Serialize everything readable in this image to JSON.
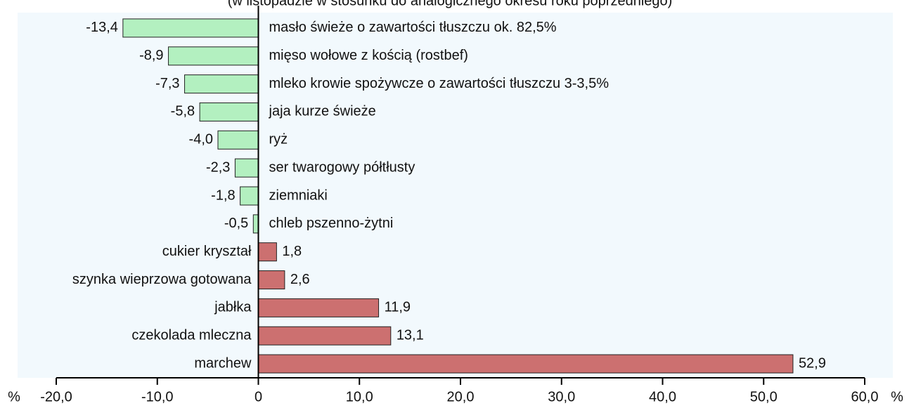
{
  "chart_data": {
    "type": "bar",
    "orientation": "horizontal",
    "subtitle": "(w listopadzie w stosunku do analogicznego okresu roku poprzedniego)",
    "categories": [
      "masło świeże o zawartości tłuszczu ok. 82,5%",
      "mięso wołowe z kością (rostbef)",
      "mleko krowie spożywcze o zawartości tłuszczu 3-3,5%",
      "jaja kurze świeże",
      "ryż",
      "ser twarogowy półtłusty",
      "ziemniaki",
      "chleb pszenno-żytni",
      "cukier kryształ",
      "szynka wieprzowa gotowana",
      "jabłka",
      "czekolada mleczna",
      "marchew"
    ],
    "values": [
      -13.4,
      -8.9,
      -7.3,
      -5.8,
      -4.0,
      -2.3,
      -1.8,
      -0.5,
      1.8,
      2.6,
      11.9,
      13.1,
      52.9
    ],
    "value_labels": [
      "-13,4",
      "-8,9",
      "-7,3",
      "-5,8",
      "-4,0",
      "-2,3",
      "-1,8",
      "-0,5",
      "1,8",
      "2,6",
      "11,9",
      "13,1",
      "52,9"
    ],
    "color_negative": "#b3f0c0",
    "color_positive": "#cc7070",
    "xlim": [
      -20,
      60
    ],
    "xticks": [
      {
        "value": -20,
        "label": "-20,0"
      },
      {
        "value": -10,
        "label": "-10,0"
      },
      0,
      {
        "value": 10,
        "label": "10,0"
      },
      {
        "value": 20,
        "label": "20,0"
      },
      {
        "value": 30,
        "label": "30,0"
      },
      {
        "value": 40,
        "label": "40,0"
      },
      {
        "value": 50,
        "label": "50,0"
      },
      {
        "value": 60,
        "label": "60,0"
      }
    ],
    "x_unit": "%"
  }
}
